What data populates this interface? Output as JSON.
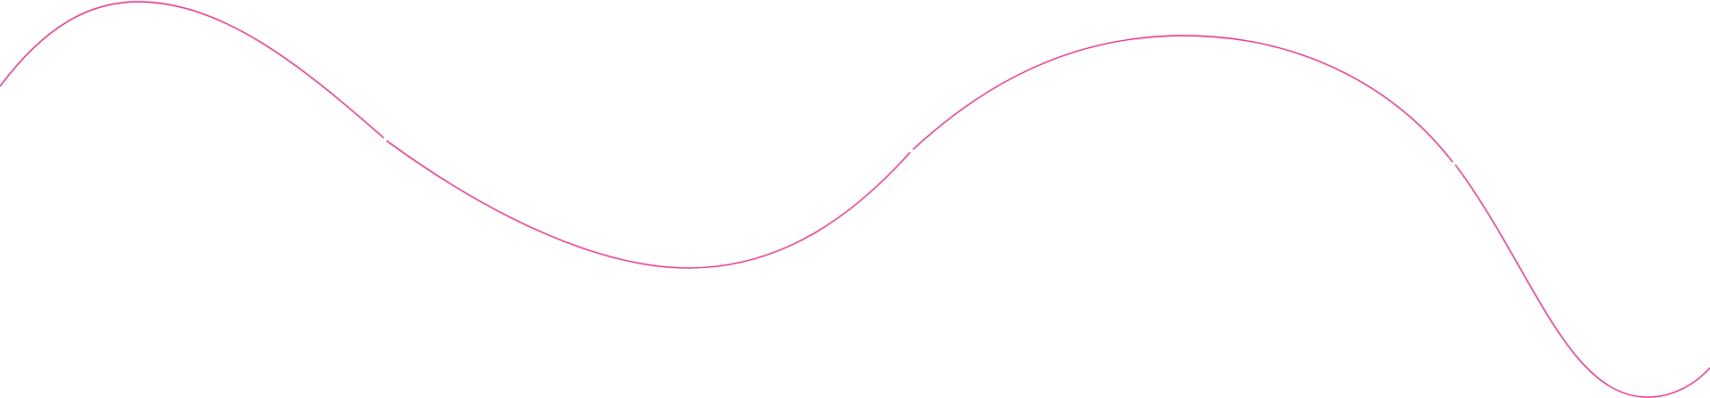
{
  "decoration": {
    "type": "wavy-line",
    "line_color": "#ec1e79",
    "background_color": "#ffffff",
    "segment_count": 4
  }
}
